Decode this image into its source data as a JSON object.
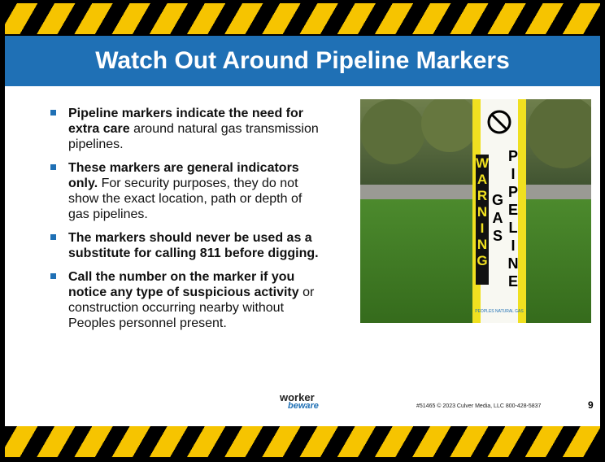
{
  "header": {
    "title": "Watch Out Around Pipeline Markers"
  },
  "bullets": [
    {
      "bold": "Pipeline markers indicate the need for extra care",
      "text": "around natural gas transmission pipelines."
    },
    {
      "bold": "These markers are general indicators only.",
      "text": "For security purposes, they do not show the exact location, path or depth of gas pipelines."
    },
    {
      "bold": "The markers should never be used as a substitute for calling 811 before digging.",
      "text": null
    },
    {
      "bold": "Call the number on the marker if you notice any type of suspicious activity",
      "text": "or construction occurring nearby without Peoples personnel present."
    }
  ],
  "photo": {
    "sign": {
      "warning": "WARNING",
      "gas": "GAS",
      "pipeline": "PIPELINE",
      "company": "PEOPLES NATURAL GAS"
    }
  },
  "footer": {
    "logo_top": "worker",
    "logo_bottom": "beware",
    "copyright": "#51465 © 2023 Culver Media, LLC 800-428-5837",
    "page": "9"
  }
}
